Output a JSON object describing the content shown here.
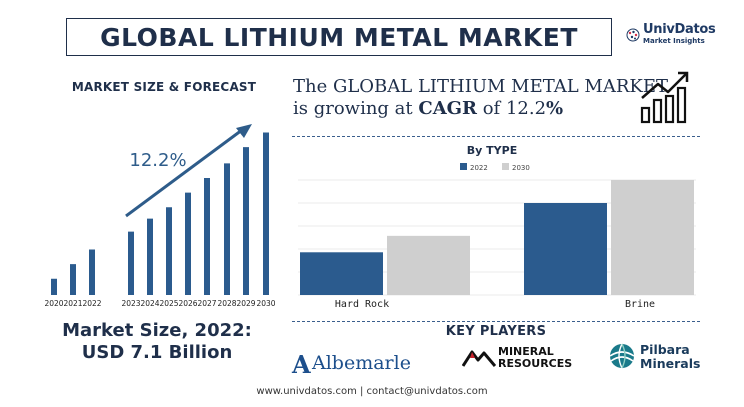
{
  "header": {
    "title": "GLOBAL LITHIUM METAL MARKET",
    "logo": {
      "brand": "UnivDatos",
      "sub": "Market Insights",
      "icon": "globe-icon"
    }
  },
  "forecast": {
    "heading": "MARKET SIZE & FORECAST",
    "cagr_label": "12.2%"
  },
  "cagr": {
    "line1": "The GLOBAL LITHIUM METAL MARKET",
    "prefix": "is growing at ",
    "word": "CAGR",
    "of": " of 12.2",
    "pct": "%"
  },
  "market_size": {
    "line1": "Market Size, 2022:",
    "line2": "USD 7.1 Billion"
  },
  "key_players": {
    "heading": "KEY PLAYERS",
    "albemarle": "Albemarle",
    "albemarle_mark": "A",
    "mineral_line1": "MINERAL",
    "mineral_line2": "RESOURCES",
    "pilbara_line1": "Pilbara",
    "pilbara_line2": "Minerals"
  },
  "footer": "www.univdatos.com | contact@univdatos.com",
  "colors": {
    "navy": "#1f2f4a",
    "bar_blue": "#2b5b8e",
    "bar_gray": "#cfcfcf",
    "arrow": "#2e5c8a"
  },
  "chart_data": [
    {
      "type": "bar",
      "title": "MARKET SIZE & FORECAST",
      "categories": [
        "2020",
        "2021",
        "2022",
        "2023",
        "2024",
        "2025",
        "2026",
        "2027",
        "2028",
        "2029",
        "2030"
      ],
      "values": [
        1,
        1.9,
        2.8,
        3.9,
        4.7,
        5.4,
        6.3,
        7.2,
        8.1,
        9.1,
        10
      ],
      "annotation": "12.2%",
      "ylim": [
        0,
        10.4
      ]
    },
    {
      "type": "bar",
      "title": "By TYPE",
      "categories": [
        "Hard Rock",
        "Brine"
      ],
      "series": [
        {
          "name": "2022",
          "values": [
            2.6,
            5.6
          ]
        },
        {
          "name": "2030",
          "values": [
            3.6,
            7.0
          ]
        }
      ],
      "ylim": [
        0,
        7.0
      ],
      "grid": true,
      "legend": "top-center"
    }
  ]
}
